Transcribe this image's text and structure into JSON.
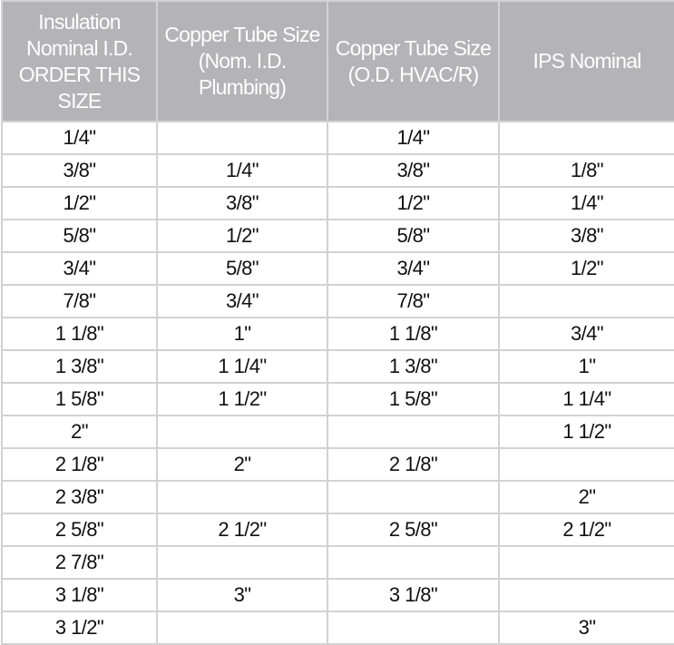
{
  "table": {
    "headers": [
      "Insulation Nominal I.D. ORDER THIS SIZE",
      "Copper Tube Size (Nom. I.D. Plumbing)",
      "Copper Tube Size (O.D. HVAC/R)",
      "IPS Nominal"
    ],
    "rows": [
      [
        "1/4\"",
        "",
        "1/4\"",
        ""
      ],
      [
        "3/8\"",
        "1/4\"",
        "3/8\"",
        "1/8\""
      ],
      [
        "1/2\"",
        "3/8\"",
        "1/2\"",
        "1/4\""
      ],
      [
        "5/8\"",
        "1/2\"",
        "5/8\"",
        "3/8\""
      ],
      [
        "3/4\"",
        "5/8\"",
        "3/4\"",
        "1/2\""
      ],
      [
        "7/8\"",
        "3/4\"",
        "7/8\"",
        ""
      ],
      [
        "1 1/8\"",
        "1\"",
        "1 1/8\"",
        "3/4\""
      ],
      [
        "1 3/8\"",
        "1 1/4\"",
        "1 3/8\"",
        "1\""
      ],
      [
        "1 5/8\"",
        "1 1/2\"",
        "1 5/8\"",
        "1 1/4\""
      ],
      [
        "2\"",
        "",
        "",
        "1 1/2\""
      ],
      [
        "2 1/8\"",
        "2\"",
        "2 1/8\"",
        ""
      ],
      [
        "2 3/8\"",
        "",
        "",
        "2\""
      ],
      [
        "2 5/8\"",
        "2 1/2\"",
        "2 5/8\"",
        "2 1/2\""
      ],
      [
        "2 7/8\"",
        "",
        "",
        ""
      ],
      [
        "3 1/8\"",
        "3\"",
        "3 1/8\"",
        ""
      ],
      [
        "3 1/2\"",
        "",
        "",
        "3\""
      ]
    ]
  },
  "colors": {
    "header_bg": "#b4b3b5",
    "header_text": "#ffffff",
    "grid": "#d2d2d4"
  }
}
